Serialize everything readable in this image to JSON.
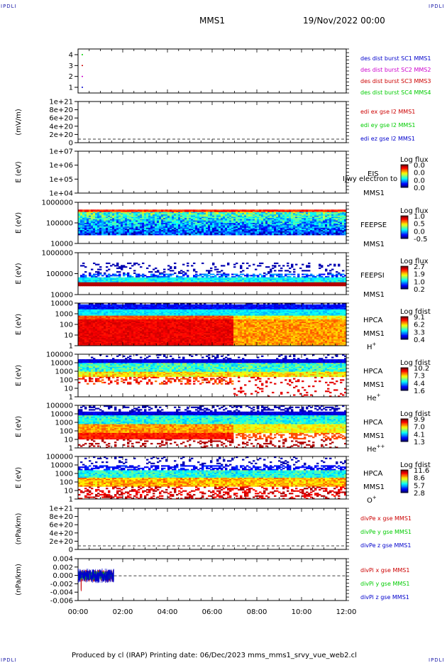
{
  "corner_tag": "IPDLI",
  "header": {
    "spacecraft": "MMS1",
    "datetime": "19/Nov/2022 00:00"
  },
  "footer": "Produced by cl (IRAP)   Printing date: 06/Dec/2023   mms_mms1_srvy_vue_web2.cl",
  "time_axis": [
    "00:00",
    "02:00",
    "04:00",
    "06:00",
    "08:00",
    "10:00",
    "12:00"
  ],
  "colors": {
    "mms1": "#0000cc",
    "mms2": "#cc00cc",
    "mms3": "#cc0000",
    "mms4": "#00cc00",
    "x": "#cc0000",
    "y": "#00cc00",
    "z": "#0000cc"
  },
  "chart_data": [
    {
      "type": "line",
      "panel": "burst",
      "yticks": [
        "4",
        "3",
        "2",
        "1"
      ],
      "legend": [
        "des dist burst SC1 MMS1",
        "des dist burst SC2 MMS2",
        "des dist burst SC3 MMS3",
        "des dist burst SC4 MMS4"
      ],
      "series": [
        {
          "name": "des dist burst SC1 MMS1",
          "y": 1
        },
        {
          "name": "des dist burst SC2 MMS2",
          "y": 2
        },
        {
          "name": "des dist burst SC3 MMS3",
          "y": 3
        },
        {
          "name": "des dist burst SC4 MMS4",
          "y": 4
        }
      ]
    },
    {
      "type": "line",
      "panel": "edi",
      "ylabel": "(mV/m)",
      "yticks": [
        "1e+21",
        "8e+20",
        "6e+20",
        "4e+20",
        "2e+20",
        "0"
      ],
      "legend": [
        "edi ex gse l2 MMS1",
        "edi ey gse l2 MMS1",
        "edi ez gse l2 MMS1"
      ]
    },
    {
      "type": "heatmap",
      "panel": "eis",
      "ylabel": "E (eV)",
      "yticks": [
        "1e+07",
        "1e+06",
        "1e+05",
        "1e+04"
      ],
      "labels": [
        "EIS",
        "MMS1"
      ],
      "overlay": "Ijwy electron to",
      "cbar_title": "Log flux",
      "cbar_ticks": [
        "0.0",
        "0.0",
        "0.0",
        "0.0"
      ]
    },
    {
      "type": "heatmap",
      "panel": "feepse",
      "ylabel": "E (eV)",
      "yticks": [
        "1000000",
        "100000",
        "10000"
      ],
      "labels": [
        "FEEPSE",
        "MMS1"
      ],
      "cbar_title": "Log flux",
      "cbar_ticks": [
        "1.0",
        "0.5",
        "0.0",
        "-0.5"
      ]
    },
    {
      "type": "heatmap",
      "panel": "feepsi",
      "ylabel": "E (eV)",
      "yticks": [
        "1000000",
        "100000",
        "10000"
      ],
      "labels": [
        "FEEPSI",
        "MMS1"
      ],
      "cbar_title": "Log flux",
      "cbar_ticks": [
        "2.7",
        "1.9",
        "1.0",
        "0.2"
      ]
    },
    {
      "type": "heatmap",
      "panel": "hpca_h",
      "ylabel": "E (eV)",
      "yticks": [
        "10000",
        "1000",
        "100",
        "10",
        "1"
      ],
      "labels": [
        "HPCA",
        "MMS1"
      ],
      "species": "H",
      "charge": "+",
      "cbar_title": "Log fdist",
      "cbar_ticks": [
        "9.1",
        "6.2",
        "3.3",
        "0.4"
      ]
    },
    {
      "type": "heatmap",
      "panel": "hpca_he",
      "ylabel": "E (eV)",
      "yticks": [
        "100000",
        "10000",
        "1000",
        "100",
        "10",
        "1"
      ],
      "labels": [
        "HPCA",
        "MMS1"
      ],
      "species": "He",
      "charge": "+",
      "cbar_title": "Log fdist",
      "cbar_ticks": [
        "10.2",
        "7.3",
        "4.4",
        "1.6"
      ]
    },
    {
      "type": "heatmap",
      "panel": "hpca_hepp",
      "ylabel": "E (eV)",
      "yticks": [
        "100000",
        "10000",
        "1000",
        "100",
        "10",
        "1"
      ],
      "labels": [
        "HPCA",
        "MMS1"
      ],
      "species": "He",
      "charge": "++",
      "cbar_title": "Log fdist",
      "cbar_ticks": [
        "9.9",
        "7.0",
        "4.1",
        "1.3"
      ]
    },
    {
      "type": "heatmap",
      "panel": "hpca_o",
      "ylabel": "E (eV)",
      "yticks": [
        "100000",
        "10000",
        "1000",
        "100",
        "10",
        "1"
      ],
      "labels": [
        "HPCA",
        "MMS1"
      ],
      "species": "O",
      "charge": "+",
      "cbar_title": "Log fdist",
      "cbar_ticks": [
        "11.6",
        "8.6",
        "5.7",
        "2.8"
      ]
    },
    {
      "type": "line",
      "panel": "divpe",
      "ylabel": "(nPa/km)",
      "yticks": [
        "1e+21",
        "8e+20",
        "6e+20",
        "4e+20",
        "2e+20",
        "0"
      ],
      "legend": [
        "divPe x gse MMS1",
        "divPe y gse MMS1",
        "divPe z gse MMS1"
      ]
    },
    {
      "type": "line",
      "panel": "divpi",
      "ylabel": "(nPa/km)",
      "yticks": [
        "0.004",
        "0.002",
        "0.000",
        "-0.002",
        "-0.004",
        "-0.006"
      ],
      "ylim": [
        -0.0065,
        0.0045
      ],
      "legend": [
        "divPi x gse MMS1",
        "divPi y gse MMS1",
        "divPi z gse MMS1"
      ],
      "data_extent_hours": [
        0.0,
        1.6
      ]
    }
  ]
}
